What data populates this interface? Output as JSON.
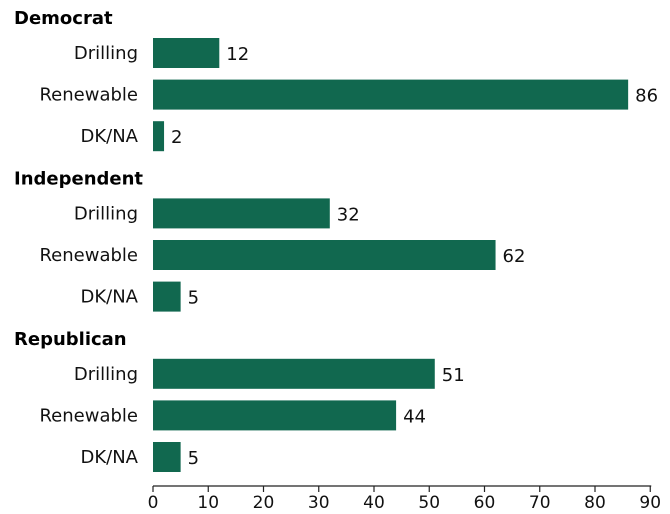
{
  "chart_data": {
    "type": "bar",
    "orientation": "horizontal",
    "bar_color": "#11684f",
    "xlim": [
      0,
      90
    ],
    "xticks": [
      0,
      10,
      20,
      30,
      40,
      50,
      60,
      70,
      80,
      90
    ],
    "groups": [
      {
        "name": "Democrat",
        "categories": [
          "Drilling",
          "Renewable",
          "DK/NA"
        ],
        "values": [
          12,
          86,
          2
        ]
      },
      {
        "name": "Independent",
        "categories": [
          "Drilling",
          "Renewable",
          "DK/NA"
        ],
        "values": [
          32,
          62,
          5
        ]
      },
      {
        "name": "Republican",
        "categories": [
          "Drilling",
          "Renewable",
          "DK/NA"
        ],
        "values": [
          51,
          44,
          5
        ]
      }
    ]
  }
}
